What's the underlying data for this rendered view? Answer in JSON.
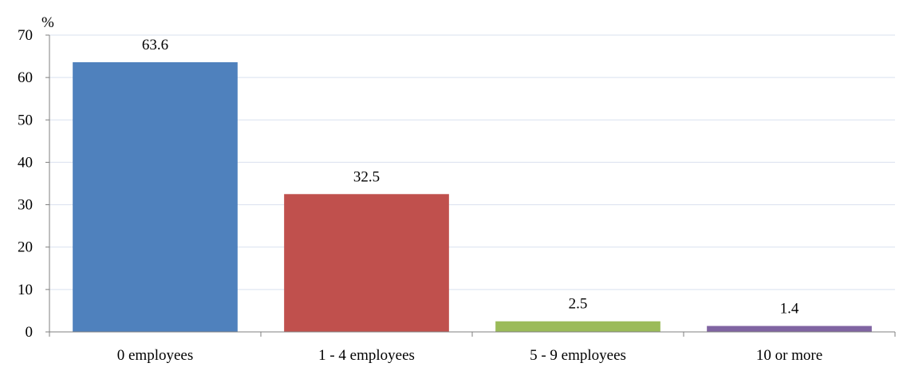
{
  "chart_data": {
    "type": "bar",
    "title": "",
    "ylabel": "%",
    "xlabel": "",
    "categories": [
      "0 employees",
      "1 - 4 employees",
      "5 - 9 employees",
      "10 or more"
    ],
    "values": [
      63.6,
      32.5,
      2.5,
      1.4
    ],
    "data_labels": [
      "63.6",
      "32.5",
      "2.5",
      "1.4"
    ],
    "colors": [
      "#4F81BD",
      "#C0504D",
      "#9BBB59",
      "#8064A2"
    ],
    "ylim": [
      0,
      70
    ],
    "yticks": [
      0,
      10,
      20,
      30,
      40,
      50,
      60,
      70
    ],
    "grid": true,
    "gridline_color": "#D9E1EF",
    "legend": "none"
  }
}
